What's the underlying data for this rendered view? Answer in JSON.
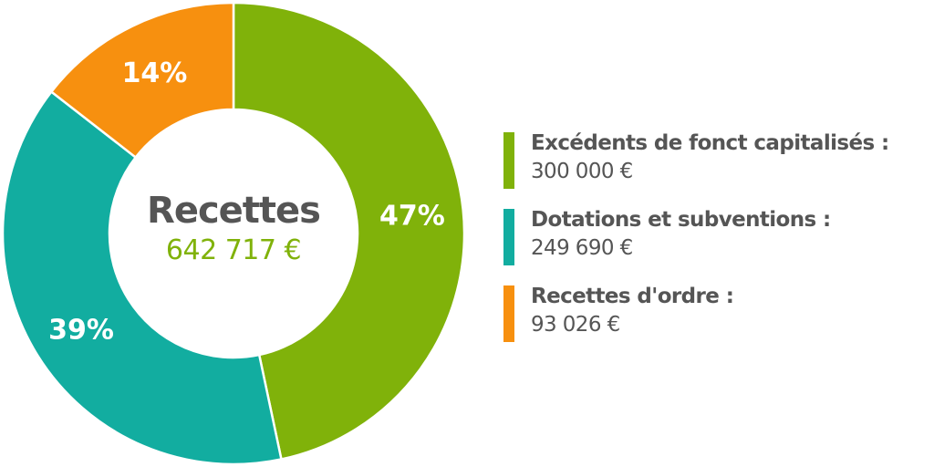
{
  "chart_data": {
    "type": "pie",
    "center_title": "Recettes",
    "center_value": "642 717 €",
    "slices": [
      {
        "label": "Excédents de fonct capitalisés :",
        "value_text": "300 000 €",
        "value": 300000,
        "percent_label": "47%",
        "color": "#80b20a"
      },
      {
        "label": "Dotations et subventions :",
        "value_text": "249 690 €",
        "value": 249690,
        "percent_label": "39%",
        "color": "#12ada0"
      },
      {
        "label": "Recettes d'ordre :",
        "value_text": "93 026 €",
        "value": 93026,
        "percent_label": "14%",
        "color": "#f7900f"
      }
    ],
    "legend_position": "right"
  },
  "colors": {
    "text": "#555555",
    "center_value": "#80b20a",
    "separator": "#ffffff"
  }
}
